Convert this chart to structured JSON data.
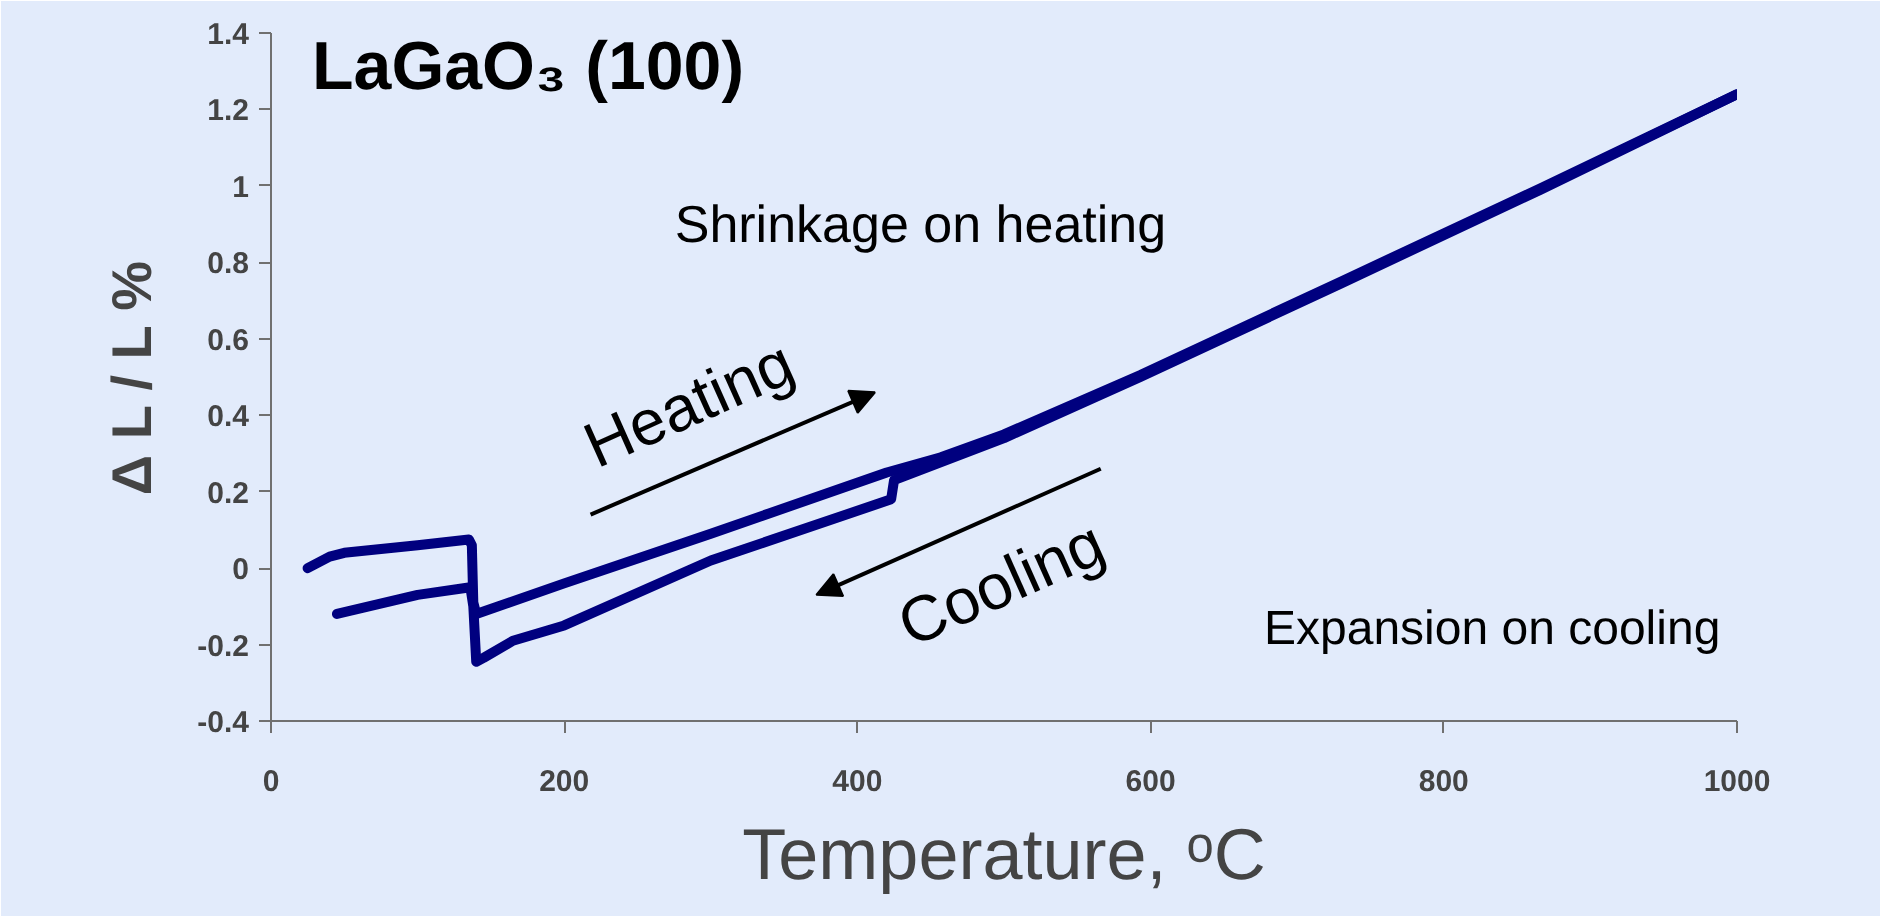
{
  "chart_data": {
    "type": "line",
    "title": "LaGaO₃ (100)",
    "xlabel": "Temperature, ᵒC",
    "ylabel": "Δ L / L %",
    "xlim": [
      0,
      1000
    ],
    "xticks": [
      0,
      200,
      400,
      600,
      800,
      1000
    ],
    "ylim": [
      -0.4,
      1.4
    ],
    "yticks": [
      -0.4,
      -0.2,
      0,
      0.2,
      0.4,
      0.6,
      0.8,
      1,
      1.2,
      1.4
    ],
    "grid": false,
    "marker": "none",
    "line_style": "solid",
    "series": [
      {
        "color": "#00007f",
        "x": [
          25,
          40,
          50,
          100,
          135,
          137,
          138,
          140,
          200,
          300,
          420,
          457,
          500,
          593,
          730,
          866,
          1000
        ],
        "values": [
          0.0,
          0.03,
          0.04,
          0.06,
          0.075,
          0.06,
          -0.09,
          -0.12,
          -0.04,
          0.09,
          0.25,
          0.29,
          0.35,
          0.505,
          0.75,
          0.994,
          1.24
        ]
      },
      {
        "color": "#00007f",
        "x": [
          1000,
          866,
          730,
          593,
          500,
          425,
          423,
          300,
          200,
          165,
          145,
          140,
          138,
          136,
          100,
          45
        ],
        "values": [
          1.24,
          0.99,
          0.745,
          0.5,
          0.34,
          0.23,
          0.18,
          0.02,
          -0.15,
          -0.19,
          -0.235,
          -0.245,
          -0.1,
          -0.05,
          -0.07,
          -0.12
        ]
      }
    ],
    "annotations": [
      "Shrinkage on heating",
      "Expansion on cooling",
      "Heating",
      "Cooling"
    ]
  }
}
